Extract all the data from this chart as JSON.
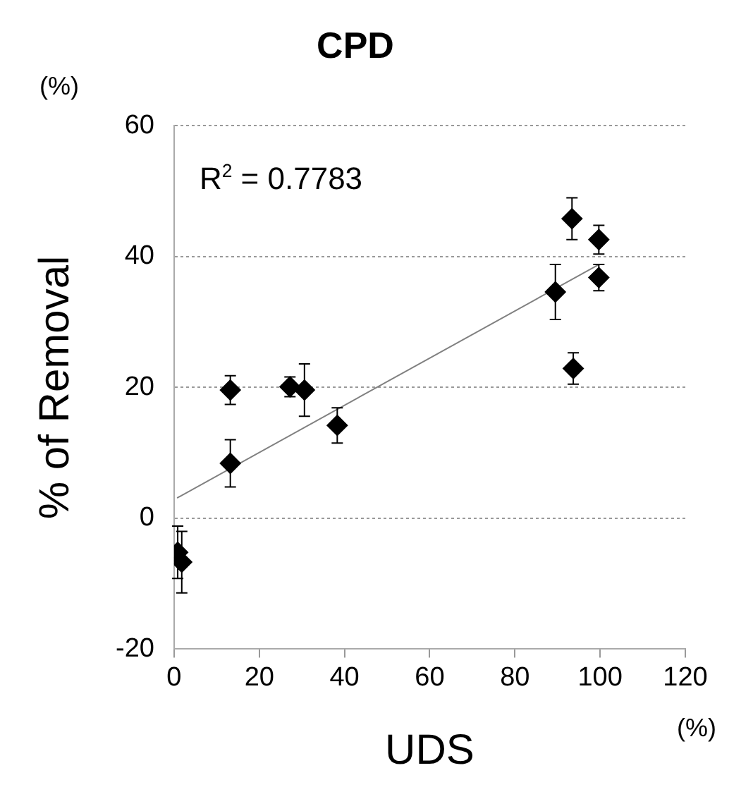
{
  "chart_data": {
    "type": "scatter",
    "title": "CPD",
    "xlabel": "UDS",
    "ylabel": "% of Removal",
    "annotations": [
      "R$^{2}$ = 0.7783",
      "(%)",
      "(%)"
    ],
    "xlim": [
      0,
      120
    ],
    "xticks": [
      0,
      20,
      40,
      60,
      80,
      100,
      120
    ],
    "ylim": [
      -20,
      60
    ],
    "yticks": [
      -20,
      0,
      20,
      40,
      60
    ],
    "grid": "y",
    "legend": false,
    "marker": "diamond",
    "series": [
      {
        "color": "#000000",
        "x": [
          0.85,
          1.8,
          13.2,
          13.2,
          27.2,
          30.6,
          38.3,
          89.5,
          93.4,
          93.7,
          99.7,
          99.7
        ],
        "values": [
          -5.2,
          -6.7,
          19.6,
          8.4,
          20.1,
          19.6,
          14.2,
          34.6,
          45.8,
          22.9,
          42.6,
          36.8
        ],
        "errors": [
          4,
          4.7,
          2.2,
          3.6,
          1.5,
          4,
          2.7,
          4.2,
          3.2,
          2.4,
          2.2,
          2
        ]
      },
      {
        "type": "line",
        "marker": "none",
        "color": "#808080",
        "x": [
          0.7,
          99.7
        ],
        "values": [
          3.1,
          38.8
        ]
      }
    ]
  }
}
